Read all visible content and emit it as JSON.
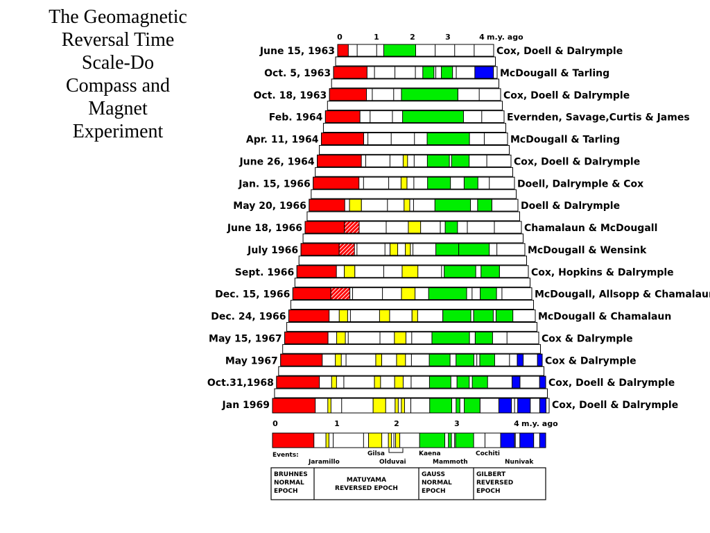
{
  "title_lines": [
    "The Geomagnetic",
    "Reversal Time",
    "Scale-Do",
    "Compass and",
    "Magnet",
    "Experiment"
  ],
  "colors": {
    "brunhes": "#ff0000",
    "matuyama_event": "#ffff00",
    "gauss": "#00ee00",
    "gilbert_event": "#0000ff",
    "reversed": "#ffffff",
    "outline": "#000000"
  },
  "top_axis": {
    "ticks": [
      "0",
      "1",
      "2",
      "3",
      "4"
    ],
    "unit": "m.y. ago"
  },
  "bottom_axis": {
    "ticks": [
      "0",
      "1",
      "2",
      "3",
      "4"
    ],
    "unit": "m.y. ago"
  },
  "rows": [
    {
      "date": "June 15, 1963",
      "authors": "Cox, Doell & Dalrymple",
      "segments": [
        [
          0,
          0.3,
          "R"
        ],
        [
          1.3,
          2.2,
          "G"
        ]
      ]
    },
    {
      "date": "Oct. 5, 1963",
      "authors": "McDougall & Tarling",
      "segments": [
        [
          0,
          0.9,
          "R"
        ],
        [
          2.4,
          2.7,
          "G"
        ],
        [
          2.9,
          3.2,
          "G"
        ],
        [
          3.8,
          4.3,
          "B"
        ]
      ]
    },
    {
      "date": "Oct. 18, 1963",
      "authors": "Cox, Doell & Dalrymple",
      "segments": [
        [
          0,
          0.95,
          "R"
        ],
        [
          1.85,
          3.3,
          "G"
        ]
      ]
    },
    {
      "date": "Feb. 1964",
      "authors": "Evernden, Savage,Curtis & James",
      "segments": [
        [
          0,
          0.85,
          "R"
        ],
        [
          1.9,
          3.4,
          "G"
        ]
      ]
    },
    {
      "date": "Apr. 11, 1964",
      "authors": "McDougall & Tarling",
      "segments": [
        [
          0,
          1.0,
          "R"
        ],
        [
          2.5,
          3.5,
          "G"
        ]
      ]
    },
    {
      "date": "June 26, 1964",
      "authors": "Cox, Doell & Dalrymple",
      "segments": [
        [
          0,
          1.0,
          "R"
        ],
        [
          1.95,
          2.05,
          "Y"
        ],
        [
          2.5,
          3.0,
          "G"
        ],
        [
          3.05,
          3.45,
          "G"
        ]
      ]
    },
    {
      "date": "Jan. 15, 1966",
      "authors": "Doell, Dalrymple & Cox",
      "segments": [
        [
          0,
          1.0,
          "R"
        ],
        [
          1.92,
          2.05,
          "Y"
        ],
        [
          2.5,
          3.0,
          "G"
        ],
        [
          3.3,
          3.6,
          "G"
        ]
      ]
    },
    {
      "date": "May 20, 1966",
      "authors": "Doell & Dalrymple",
      "segments": [
        [
          0,
          0.75,
          "R"
        ],
        [
          0.85,
          1.1,
          "Y"
        ],
        [
          2.0,
          2.12,
          "Y"
        ],
        [
          2.65,
          3.4,
          "G"
        ],
        [
          3.55,
          3.85,
          "G"
        ]
      ]
    },
    {
      "date": "June 18, 1966",
      "authors": "Chamalaun & McDougall",
      "segments": [
        [
          0,
          0.8,
          "R"
        ],
        [
          0.8,
          1.1,
          "H"
        ],
        [
          2.1,
          2.35,
          "Y"
        ],
        [
          2.85,
          3.1,
          "G"
        ]
      ]
    },
    {
      "date": "July 1966",
      "authors": "McDougall & Wensink",
      "segments": [
        [
          0,
          0.75,
          "R"
        ],
        [
          0.75,
          1.05,
          "H"
        ],
        [
          1.75,
          1.9,
          "Y"
        ],
        [
          2.05,
          2.15,
          "Y"
        ],
        [
          2.65,
          3.1,
          "G"
        ],
        [
          3.1,
          3.7,
          "G"
        ]
      ]
    },
    {
      "date": "Sept. 1966",
      "authors": "Cox, Hopkins & Dalrymple",
      "segments": [
        [
          0,
          0.75,
          "R"
        ],
        [
          0.9,
          1.1,
          "Y"
        ],
        [
          2.0,
          2.3,
          "Y"
        ],
        [
          2.8,
          3.4,
          "G"
        ],
        [
          3.5,
          3.85,
          "G"
        ]
      ]
    },
    {
      "date": "Dec. 15, 1966",
      "authors": "McDougall, Allsopp & Chamalaun",
      "segments": [
        [
          0,
          0.7,
          "R"
        ],
        [
          0.7,
          1.05,
          "H"
        ],
        [
          2.0,
          2.25,
          "Y"
        ],
        [
          2.5,
          3.2,
          "G"
        ],
        [
          3.45,
          3.75,
          "G"
        ]
      ]
    },
    {
      "date": "Dec. 24, 1966",
      "authors": "McDougall & Chamalaun",
      "segments": [
        [
          0,
          0.72,
          "R"
        ],
        [
          0.9,
          1.05,
          "Y"
        ],
        [
          1.62,
          1.8,
          "Y"
        ],
        [
          2.2,
          2.3,
          "Y"
        ],
        [
          2.75,
          3.25,
          "G"
        ],
        [
          3.3,
          3.65,
          "G"
        ],
        [
          3.7,
          4.0,
          "G"
        ]
      ]
    },
    {
      "date": "May 15, 1967",
      "authors": "Cox & Dalrymple",
      "segments": [
        [
          0,
          0.75,
          "R"
        ],
        [
          0.9,
          1.05,
          "Y"
        ],
        [
          1.9,
          2.1,
          "Y"
        ],
        [
          2.55,
          3.2,
          "G"
        ],
        [
          3.3,
          3.6,
          "G"
        ]
      ]
    },
    {
      "date": "May 1967",
      "authors": "Cox & Dalrymple",
      "segments": [
        [
          0,
          0.7,
          "R"
        ],
        [
          0.92,
          1.02,
          "Y"
        ],
        [
          1.6,
          1.7,
          "Y"
        ],
        [
          1.95,
          2.1,
          "Y"
        ],
        [
          2.5,
          2.85,
          "G"
        ],
        [
          2.95,
          3.25,
          "G"
        ],
        [
          3.35,
          3.6,
          "G"
        ],
        [
          3.98,
          4.08,
          "B"
        ],
        [
          4.32,
          4.45,
          "B"
        ]
      ]
    },
    {
      "date": "Oct.31,1968",
      "authors": "Cox, Doell & Dalrymple",
      "segments": [
        [
          0,
          0.7,
          "R"
        ],
        [
          0.9,
          0.98,
          "Y"
        ],
        [
          1.6,
          1.7,
          "Y"
        ],
        [
          1.93,
          2.07,
          "Y"
        ],
        [
          2.5,
          2.85,
          "G"
        ],
        [
          2.95,
          3.15,
          "G"
        ],
        [
          3.2,
          3.45,
          "G"
        ],
        [
          3.85,
          3.98,
          "B"
        ],
        [
          4.3,
          4.42,
          "B"
        ]
      ]
    },
    {
      "date": "Jan 1969",
      "authors": "Cox, Doell & Dalrymple",
      "segments": [
        [
          0,
          0.68,
          "R"
        ],
        [
          0.88,
          0.93,
          "Y"
        ],
        [
          1.6,
          1.8,
          "Y"
        ],
        [
          1.95,
          2.0,
          "Y"
        ],
        [
          2.05,
          2.1,
          "Y"
        ],
        [
          2.5,
          2.85,
          "G"
        ],
        [
          2.92,
          2.98,
          "G"
        ],
        [
          3.05,
          3.3,
          "G"
        ],
        [
          3.6,
          3.8,
          "B"
        ],
        [
          3.9,
          4.1,
          "B"
        ],
        [
          4.25,
          4.35,
          "B"
        ]
      ]
    }
  ],
  "reference_bar": {
    "segments": [
      [
        0,
        0.69,
        "R"
      ],
      [
        0.89,
        0.94,
        "Y"
      ],
      [
        1.6,
        1.82,
        "Y"
      ],
      [
        1.93,
        1.98,
        "Y"
      ],
      [
        2.05,
        2.12,
        "Y"
      ],
      [
        2.45,
        2.87,
        "G"
      ],
      [
        2.93,
        2.98,
        "G"
      ],
      [
        3.05,
        3.35,
        "G"
      ],
      [
        3.8,
        4.03,
        "B"
      ],
      [
        4.12,
        4.35,
        "B"
      ],
      [
        4.45,
        4.55,
        "B"
      ]
    ],
    "events_label": "Events:",
    "events_top": [
      "Gilsa",
      "Kaena",
      "Cochiti"
    ],
    "events_bottom": [
      "Jaramillo",
      "Olduvai",
      "Mammoth",
      "Nunivak"
    ]
  },
  "epochs": [
    {
      "lines": [
        "BRUHNES",
        "NORMAL",
        "EPOCH"
      ]
    },
    {
      "lines": [
        "MATUYAMA",
        "REVERSED EPOCH"
      ]
    },
    {
      "lines": [
        "GAUSS",
        "NORMAL",
        "EPOCH"
      ]
    },
    {
      "lines": [
        "GILBERT",
        "REVERSED",
        "EPOCH"
      ]
    }
  ]
}
